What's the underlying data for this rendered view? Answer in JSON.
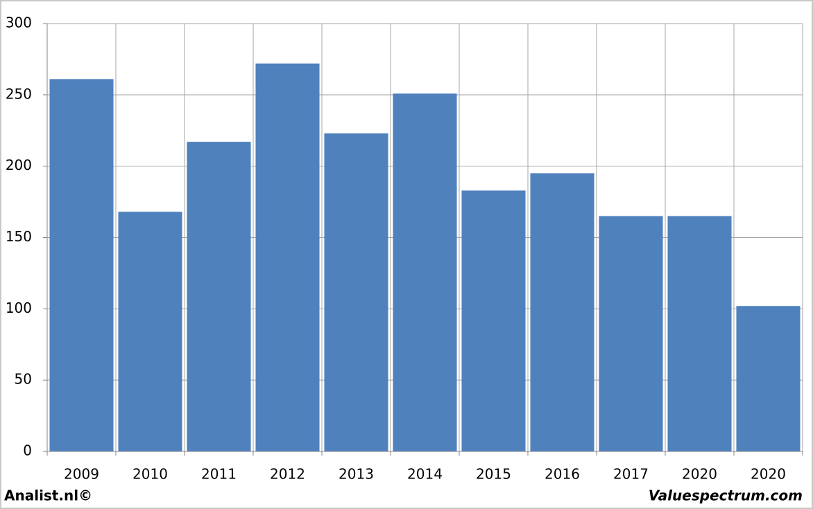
{
  "chart_data": {
    "type": "bar",
    "categories": [
      "2009",
      "2010",
      "2011",
      "2012",
      "2013",
      "2014",
      "2015",
      "2016",
      "2017",
      "2020",
      "2020"
    ],
    "values": [
      261,
      168,
      217,
      272,
      223,
      251,
      183,
      195,
      165,
      165,
      102
    ],
    "color": "#4f81bd",
    "ylim": [
      0,
      300
    ],
    "yticks": [
      0,
      50,
      100,
      150,
      200,
      250,
      300
    ],
    "grid": true,
    "watermarks": [
      "Analist.nl©",
      "Valuespectrum.com"
    ]
  }
}
